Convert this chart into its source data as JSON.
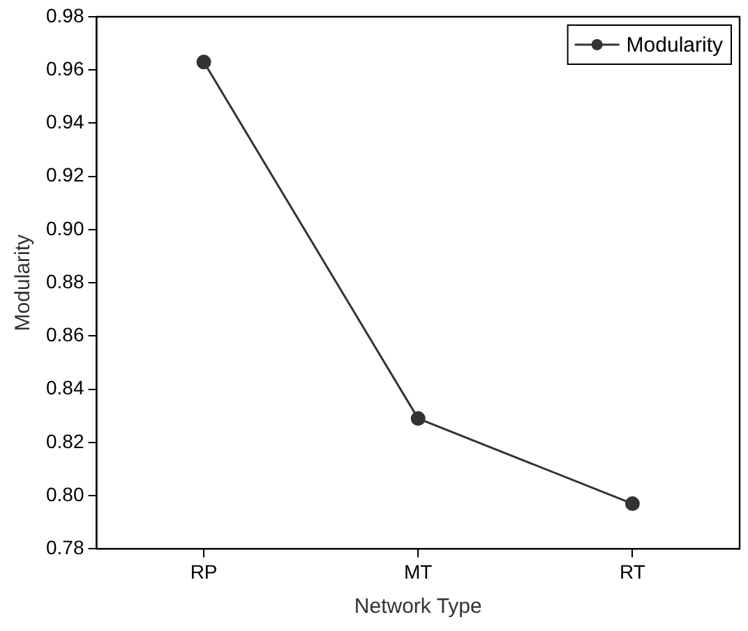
{
  "chart_data": {
    "type": "line",
    "xlabel": "Network Type",
    "ylabel": "Modularity",
    "categories": [
      "RP",
      "MT",
      "RT"
    ],
    "series": [
      {
        "name": "Modularity",
        "color": "#333333",
        "values": [
          0.963,
          0.829,
          0.797
        ]
      }
    ],
    "ylim": [
      0.78,
      0.98
    ],
    "yticks": [
      0.78,
      {
        "value": 0.8,
        "label": "0.80"
      },
      0.82,
      0.84,
      0.86,
      0.88,
      {
        "value": 0.9,
        "label": "0.90"
      },
      0.92,
      0.94,
      0.96,
      0.98
    ],
    "grid": false,
    "legend": "top right",
    "marker": "circle",
    "line_style": "solid"
  }
}
